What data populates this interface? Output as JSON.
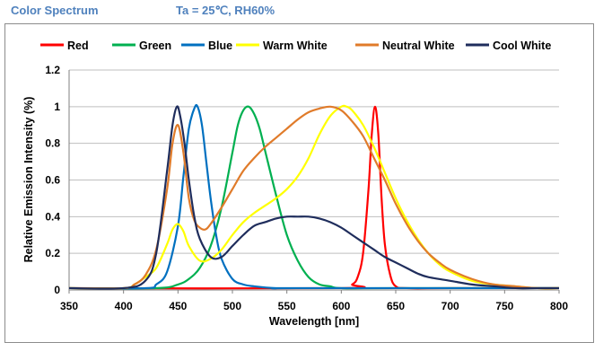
{
  "header": {
    "title": "Color Spectrum",
    "conditions": "Ta = 25℃, RH60%"
  },
  "chart_data": {
    "type": "line",
    "title": "",
    "xlabel": "Wavelength  [nm]",
    "ylabel": "Relative Emission Intensity (%)",
    "xlim": [
      350,
      800
    ],
    "ylim": [
      0,
      1.2
    ],
    "x_ticks": [
      "350",
      "400",
      "450",
      "500",
      "550",
      "600",
      "650",
      "700",
      "750",
      "800"
    ],
    "y_ticks": [
      "0",
      "0.2",
      "0.4",
      "0.6",
      "0.8",
      "1",
      "1.2"
    ],
    "legend_position": "top",
    "series": [
      {
        "name": "Red",
        "color": "#ff0000",
        "x": [
          350,
          600,
          610,
          615,
          620,
          625,
          628,
          631,
          634,
          637,
          640,
          645,
          650,
          660,
          700,
          800
        ],
        "y": [
          0.01,
          0.01,
          0.03,
          0.07,
          0.2,
          0.55,
          0.85,
          1.0,
          0.85,
          0.5,
          0.25,
          0.08,
          0.02,
          0.01,
          0.01,
          0.01
        ]
      },
      {
        "name": "Green",
        "color": "#00b050",
        "x": [
          350,
          430,
          450,
          460,
          470,
          480,
          490,
          500,
          505,
          510,
          515,
          520,
          525,
          530,
          540,
          550,
          560,
          570,
          580,
          590,
          600,
          650,
          800
        ],
        "y": [
          0.01,
          0.01,
          0.03,
          0.06,
          0.12,
          0.24,
          0.45,
          0.75,
          0.9,
          0.98,
          1.0,
          0.96,
          0.88,
          0.76,
          0.52,
          0.3,
          0.16,
          0.07,
          0.03,
          0.02,
          0.01,
          0.01,
          0.01
        ]
      },
      {
        "name": "Blue",
        "color": "#0070c0",
        "x": [
          350,
          420,
          430,
          440,
          450,
          455,
          460,
          465,
          468,
          472,
          476,
          480,
          485,
          490,
          500,
          510,
          520,
          540,
          560,
          800
        ],
        "y": [
          0.01,
          0.01,
          0.03,
          0.1,
          0.35,
          0.62,
          0.88,
          0.99,
          1.0,
          0.9,
          0.7,
          0.5,
          0.3,
          0.17,
          0.06,
          0.03,
          0.02,
          0.01,
          0.01,
          0.01
        ]
      },
      {
        "name": "Warm White",
        "color": "#ffff00",
        "x": [
          350,
          400,
          410,
          420,
          430,
          440,
          445,
          450,
          455,
          460,
          470,
          480,
          490,
          500,
          510,
          520,
          530,
          540,
          550,
          560,
          570,
          580,
          590,
          600,
          605,
          610,
          620,
          630,
          640,
          650,
          660,
          670,
          680,
          690,
          700,
          720,
          740,
          760,
          780,
          800
        ],
        "y": [
          0.01,
          0.01,
          0.03,
          0.07,
          0.12,
          0.25,
          0.33,
          0.36,
          0.32,
          0.24,
          0.16,
          0.17,
          0.22,
          0.3,
          0.37,
          0.42,
          0.46,
          0.5,
          0.55,
          0.62,
          0.72,
          0.85,
          0.95,
          1.0,
          1.0,
          0.98,
          0.9,
          0.78,
          0.64,
          0.5,
          0.38,
          0.28,
          0.2,
          0.14,
          0.1,
          0.05,
          0.03,
          0.02,
          0.01,
          0.01
        ]
      },
      {
        "name": "Neutral White",
        "color": "#e07b2a",
        "x": [
          350,
          400,
          410,
          420,
          430,
          440,
          445,
          450,
          455,
          460,
          465,
          470,
          475,
          480,
          490,
          500,
          510,
          520,
          530,
          540,
          550,
          560,
          570,
          580,
          590,
          600,
          610,
          620,
          630,
          640,
          650,
          660,
          670,
          680,
          690,
          700,
          720,
          740,
          760,
          780,
          800
        ],
        "y": [
          0.01,
          0.01,
          0.03,
          0.08,
          0.22,
          0.55,
          0.8,
          0.9,
          0.75,
          0.5,
          0.38,
          0.34,
          0.33,
          0.36,
          0.45,
          0.55,
          0.65,
          0.72,
          0.78,
          0.83,
          0.88,
          0.93,
          0.97,
          0.99,
          1.0,
          0.98,
          0.92,
          0.84,
          0.72,
          0.6,
          0.47,
          0.36,
          0.27,
          0.2,
          0.15,
          0.11,
          0.06,
          0.03,
          0.02,
          0.01,
          0.01
        ]
      },
      {
        "name": "Cool White",
        "color": "#1f2d5c",
        "x": [
          350,
          400,
          420,
          430,
          440,
          445,
          449,
          452,
          456,
          460,
          465,
          470,
          480,
          490,
          500,
          510,
          520,
          530,
          540,
          550,
          560,
          570,
          580,
          590,
          600,
          610,
          620,
          630,
          640,
          650,
          660,
          670,
          680,
          700,
          720,
          740,
          760,
          780,
          800
        ],
        "y": [
          0.01,
          0.01,
          0.05,
          0.2,
          0.65,
          0.9,
          1.0,
          0.95,
          0.8,
          0.6,
          0.4,
          0.28,
          0.18,
          0.18,
          0.24,
          0.3,
          0.35,
          0.37,
          0.39,
          0.4,
          0.4,
          0.4,
          0.39,
          0.37,
          0.34,
          0.3,
          0.26,
          0.22,
          0.18,
          0.15,
          0.12,
          0.09,
          0.07,
          0.05,
          0.03,
          0.02,
          0.01,
          0.01,
          0.01
        ]
      }
    ]
  }
}
